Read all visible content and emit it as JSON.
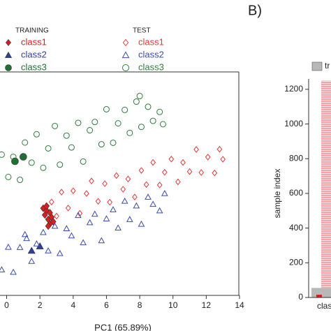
{
  "chart_data": [
    {
      "type": "scatter",
      "x_label": "PC1 (65.89%)",
      "xlim": [
        -0.4,
        14
      ],
      "xticks": [
        0,
        2,
        4,
        6,
        8,
        10,
        12,
        14
      ],
      "ylim": [
        -5,
        5
      ],
      "series_groups": [
        {
          "title": "TRAINING",
          "filled": true,
          "series": [
            {
              "name": "class1",
              "color": "#d42020",
              "marker": "diamond",
              "x": [
                2.2,
                2.3,
                2.4,
                2.5,
                2.6,
                2.7,
                2.4,
                2.6,
                2.8,
                2.5
              ],
              "values": [
                -1.1,
                -1.4,
                -1.2,
                -1.6,
                -1.3,
                -1.5,
                -1.0,
                -1.8,
                -1.7,
                -1.9
              ]
            },
            {
              "name": "class2",
              "color": "#2f3f9e",
              "marker": "triangle",
              "x": [
                1.5,
                2.0
              ],
              "values": [
                -3.0,
                -2.8
              ]
            },
            {
              "name": "class3",
              "color": "#1f6e32",
              "marker": "circle",
              "x": [
                0.5,
                1.0
              ],
              "values": [
                1.0,
                1.2
              ]
            }
          ]
        },
        {
          "title": "TEST",
          "filled": false,
          "series": [
            {
              "name": "class1",
              "color": "#e03a3a",
              "marker": "diamond",
              "x": [
                2.7,
                3.0,
                3.3,
                3.7,
                4.0,
                4.4,
                4.8,
                5.1,
                5.5,
                5.9,
                6.2,
                6.6,
                7.0,
                7.3,
                7.7,
                8.1,
                8.4,
                8.8,
                9.2,
                9.5,
                9.9,
                10.3,
                10.6,
                11.0,
                11.4,
                11.7,
                12.1,
                12.5,
                12.8,
                13.0
              ],
              "values": [
                -0.82,
                -1.45,
                -0.38,
                -1.09,
                -0.32,
                -1.33,
                -0.44,
                0.12,
                -0.79,
                0.0,
                -0.83,
                0.36,
                -0.25,
                0.21,
                -0.6,
                0.59,
                -0.04,
                0.95,
                -0.06,
                0.51,
                1.1,
                0.08,
                0.95,
                0.54,
                1.53,
                0.5,
                1.19,
                0.48,
                1.54,
                1.09
              ]
            },
            {
              "name": "class2",
              "color": "#3b4cae",
              "marker": "triangle",
              "x": [
                -0.3,
                0.1,
                0.4,
                0.8,
                1.1,
                1.5,
                1.8,
                2.2,
                2.5,
                2.9,
                3.2,
                3.6,
                3.9,
                4.3,
                4.6,
                5.0,
                5.3,
                5.7,
                6.0,
                6.4,
                6.7,
                7.1,
                7.4,
                7.8,
                8.1,
                8.5,
                8.8,
                9.2,
                9.5,
                1.2
              ],
              "values": [
                -3.85,
                -2.84,
                -3.96,
                -2.85,
                -2.27,
                -3.47,
                -2.69,
                -2.18,
                -3.0,
                -1.9,
                -3.12,
                -2.01,
                -2.33,
                -1.42,
                -2.64,
                -1.74,
                -1.36,
                -2.55,
                -1.57,
                -1.16,
                -1.98,
                -0.78,
                -1.6,
                -0.99,
                -1.81,
                -0.6,
                -0.92,
                -1.21,
                -0.44,
                -2.45
              ]
            },
            {
              "name": "class3",
              "color": "#2e7d3e",
              "marker": "circle",
              "x": [
                -0.3,
                0.1,
                0.4,
                0.8,
                1.1,
                1.5,
                1.8,
                2.2,
                2.5,
                2.9,
                3.2,
                3.6,
                3.9,
                4.3,
                4.6,
                5.0,
                5.3,
                5.7,
                6.0,
                6.4,
                6.7,
                7.1,
                7.4,
                7.8,
                8.1,
                8.5,
                8.8,
                9.2,
                9.4,
                8.0
              ],
              "values": [
                1.3,
                0.3,
                1.2,
                0.17,
                1.84,
                0.94,
                2.21,
                0.71,
                1.58,
                2.58,
                0.85,
                2.15,
                1.62,
                2.72,
                0.99,
                2.39,
                2.76,
                1.76,
                3.33,
                1.83,
                2.7,
                3.3,
                2.27,
                3.67,
                2.54,
                3.44,
                2.81,
                3.21,
                2.66,
                3.92
              ]
            }
          ]
        }
      ]
    },
    {
      "type": "bar",
      "panel_label": "B)",
      "y_label": "sample index",
      "ylim": [
        0,
        1260
      ],
      "yticks": [
        0,
        200,
        400,
        600,
        800,
        1000,
        1200
      ],
      "categories": [
        "clas"
      ],
      "series": [
        {
          "name": "tr",
          "color": "#b8b8b8",
          "values": [
            55
          ]
        },
        {
          "color": "#f3a3aa",
          "values": [
            1195
          ]
        }
      ]
    }
  ]
}
